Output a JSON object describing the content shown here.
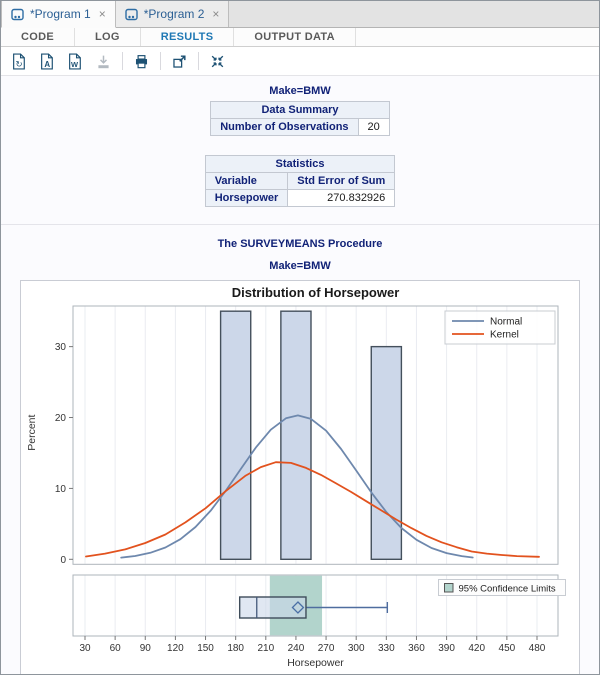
{
  "tabs": [
    {
      "label": "*Program 1",
      "close": "×",
      "active": true
    },
    {
      "label": "*Program 2",
      "close": "×",
      "active": false
    }
  ],
  "subtabs": {
    "items": [
      "CODE",
      "LOG",
      "RESULTS",
      "OUTPUT DATA"
    ],
    "active": "RESULTS"
  },
  "toolbar": {
    "icons": [
      "html-file",
      "pdf-file",
      "rtf-file",
      "download",
      "print",
      "open-new-window",
      "collapse"
    ],
    "disabled": [
      "download"
    ]
  },
  "results": {
    "byline1": "Make=BMW",
    "data_summary": {
      "title": "Data Summary",
      "rows": [
        [
          "Number of Observations",
          "20"
        ]
      ]
    },
    "statistics": {
      "title": "Statistics",
      "columns": [
        "Variable",
        "Std Error of Sum"
      ],
      "rows": [
        [
          "Horsepower",
          "270.832926"
        ]
      ]
    },
    "procedure_title": "The SURVEYMEANS Procedure",
    "byline2": "Make=BMW"
  },
  "theme": {
    "accent_blue": "#1f78b4",
    "navy_text": "#112277",
    "table_header_bg": "#ecf1f8",
    "table_border": "#c3c8d1",
    "toolbar_icon": "#1d5173"
  },
  "chart_data": {
    "type": "bar",
    "subtype": "histogram-with-density-curves-and-boxplot",
    "title": "Distribution of Horsepower",
    "xlabel": "Horsepower",
    "ylabel": "Percent",
    "x_ticks": [
      30,
      60,
      90,
      120,
      150,
      180,
      210,
      240,
      270,
      300,
      330,
      360,
      390,
      420,
      450,
      480
    ],
    "y_ticks": [
      0,
      10,
      20,
      30
    ],
    "xlim": [
      18,
      501
    ],
    "ylim": [
      0,
      35.7
    ],
    "grid": "vertical-only",
    "histogram": {
      "bin_width": 30,
      "midpoints": [
        180,
        240,
        330
      ],
      "percents": [
        35,
        35,
        30
      ],
      "bar_fill": "#ccd7e9",
      "bar_stroke": "#44505c"
    },
    "curves": [
      {
        "name": "Normal",
        "color": "#6e88ad",
        "points": [
          [
            66,
            0.24
          ],
          [
            80,
            0.47
          ],
          [
            95,
            0.91
          ],
          [
            110,
            1.66
          ],
          [
            125,
            2.84
          ],
          [
            140,
            4.55
          ],
          [
            155,
            6.84
          ],
          [
            170,
            9.64
          ],
          [
            185,
            12.73
          ],
          [
            200,
            15.76
          ],
          [
            215,
            18.28
          ],
          [
            230,
            19.89
          ],
          [
            242,
            20.3
          ],
          [
            255,
            19.81
          ],
          [
            270,
            18.14
          ],
          [
            285,
            15.56
          ],
          [
            300,
            12.53
          ],
          [
            315,
            9.44
          ],
          [
            330,
            6.67
          ],
          [
            345,
            4.42
          ],
          [
            360,
            2.75
          ],
          [
            375,
            1.6
          ],
          [
            390,
            0.88
          ],
          [
            405,
            0.45
          ],
          [
            416,
            0.26
          ]
        ]
      },
      {
        "name": "Kernel",
        "color": "#e2521e",
        "points": [
          [
            31,
            0.4
          ],
          [
            50,
            0.8
          ],
          [
            70,
            1.4
          ],
          [
            90,
            2.3
          ],
          [
            110,
            3.5
          ],
          [
            130,
            5.2
          ],
          [
            150,
            7.2
          ],
          [
            170,
            9.6
          ],
          [
            190,
            11.8
          ],
          [
            205,
            13.0
          ],
          [
            220,
            13.7
          ],
          [
            235,
            13.6
          ],
          [
            250,
            12.9
          ],
          [
            265,
            11.9
          ],
          [
            280,
            10.7
          ],
          [
            295,
            9.5
          ],
          [
            310,
            8.2
          ],
          [
            325,
            6.9
          ],
          [
            340,
            5.6
          ],
          [
            355,
            4.4
          ],
          [
            370,
            3.3
          ],
          [
            385,
            2.4
          ],
          [
            400,
            1.7
          ],
          [
            415,
            1.1
          ],
          [
            430,
            0.8
          ],
          [
            445,
            0.6
          ],
          [
            460,
            0.45
          ],
          [
            482,
            0.35
          ]
        ]
      }
    ],
    "legend": {
      "entries": [
        "Normal",
        "Kernel"
      ],
      "position": "top-right"
    },
    "boxplot": {
      "whisker_low": 184,
      "q1": 184,
      "median": 201,
      "q3": 250,
      "whisker_high": 331,
      "mean": 242,
      "ci_band": [
        214,
        266
      ],
      "band_color": "#b2d4cc",
      "legend_label": "95% Confidence Limits"
    }
  }
}
